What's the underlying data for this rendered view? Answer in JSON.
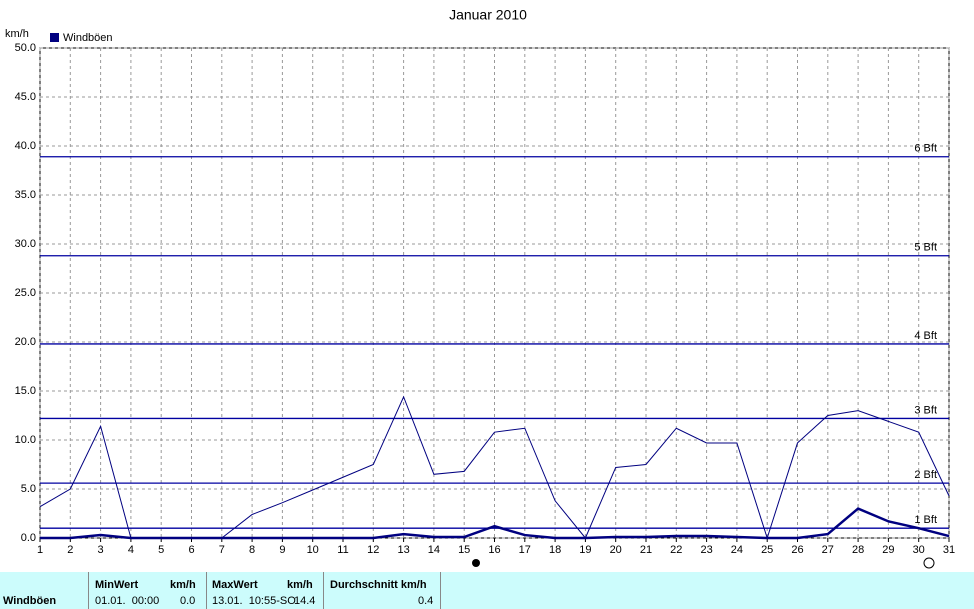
{
  "chart_data": {
    "type": "line",
    "title": "Januar 2010",
    "y_unit": "km/h",
    "x": [
      1,
      2,
      3,
      4,
      5,
      6,
      7,
      8,
      9,
      10,
      11,
      12,
      13,
      14,
      15,
      16,
      17,
      18,
      19,
      20,
      21,
      22,
      23,
      24,
      25,
      26,
      27,
      28,
      29,
      30,
      31
    ],
    "xlim": [
      1,
      31
    ],
    "xticks": [
      1,
      2,
      3,
      4,
      5,
      6,
      7,
      8,
      9,
      10,
      11,
      12,
      13,
      14,
      15,
      16,
      17,
      18,
      19,
      20,
      21,
      22,
      23,
      24,
      25,
      26,
      27,
      28,
      29,
      30,
      31
    ],
    "ylim": [
      0,
      50
    ],
    "yticks": [
      {
        "value": 0,
        "label": "0.0"
      },
      {
        "value": 5,
        "label": "5.0"
      },
      {
        "value": 10,
        "label": "10.0"
      },
      {
        "value": 15,
        "label": "15.0"
      },
      {
        "value": 20,
        "label": "20.0"
      },
      {
        "value": 25,
        "label": "25.0"
      },
      {
        "value": 30,
        "label": "30.0"
      },
      {
        "value": 35,
        "label": "35.0"
      },
      {
        "value": 40,
        "label": "40.0"
      },
      {
        "value": 45,
        "label": "45.0"
      },
      {
        "value": 50,
        "label": "50.0"
      }
    ],
    "grid": true,
    "series": [
      {
        "name": "Windböen",
        "color": "#000080",
        "values": [
          3.2,
          5.0,
          11.4,
          0,
          0,
          0,
          0,
          2.4,
          3.6,
          4.9,
          6.2,
          7.5,
          14.4,
          6.5,
          6.8,
          10.8,
          11.2,
          3.8,
          0,
          7.2,
          7.5,
          11.2,
          9.7,
          9.7,
          0,
          9.7,
          12.5,
          13.0,
          11.9,
          10.8,
          4.3
        ]
      },
      {
        "color": "#000080",
        "values": [
          0,
          0,
          0.3,
          0,
          0,
          0,
          0,
          0,
          0,
          0,
          0,
          0,
          0.4,
          0.1,
          0.1,
          1.2,
          0.3,
          0,
          0,
          0.1,
          0.1,
          0.2,
          0.2,
          0.1,
          0,
          0,
          0.4,
          3.0,
          1.7,
          1.0,
          0.2
        ]
      }
    ],
    "reference_lines": [
      {
        "value": 1.0,
        "label": "1 Bft"
      },
      {
        "value": 5.6,
        "label": "2 Bft"
      },
      {
        "value": 12.2,
        "label": "3 Bft"
      },
      {
        "value": 19.8,
        "label": "4 Bft"
      },
      {
        "value": 28.8,
        "label": "5 Bft"
      },
      {
        "value": 38.9,
        "label": "6 Bft"
      }
    ],
    "reference_color": "#0000a0"
  },
  "table": {
    "row_label": "Windböen",
    "columns": [
      {
        "header": "MinWert",
        "unit": "km/h",
        "when": "01.01.  00:00",
        "value": "0.0"
      },
      {
        "header": "MaxWert",
        "unit": "km/h",
        "when": "13.01.  10:55-SO",
        "value": "14.4"
      },
      {
        "header": "Durchschnitt km/h",
        "value": "0.4"
      }
    ]
  }
}
